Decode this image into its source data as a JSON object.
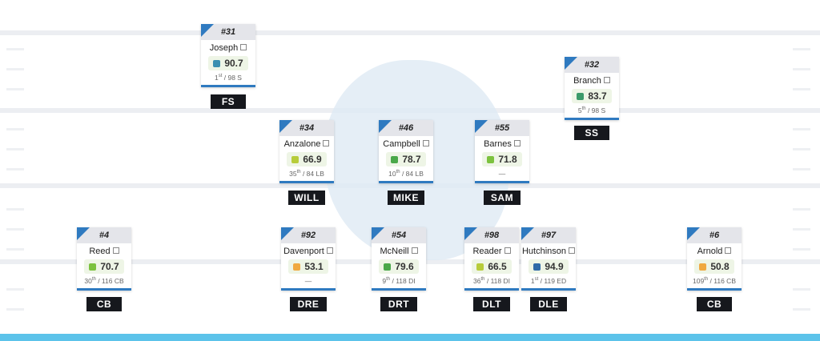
{
  "players": [
    {
      "number": "#31",
      "name": "Joseph",
      "grade": "90.7",
      "color": "#3a8fb0",
      "rank": "1",
      "suffix": "st",
      "of": " / 98 S",
      "position": "FS"
    },
    {
      "number": "#32",
      "name": "Branch",
      "grade": "83.7",
      "color": "#3b9a6a",
      "rank": "5",
      "suffix": "th",
      "of": " / 98 S",
      "position": "SS"
    },
    {
      "number": "#34",
      "name": "Anzalone",
      "grade": "66.9",
      "color": "#b7cc3a",
      "rank": "35",
      "suffix": "th",
      "of": " / 84 LB",
      "position": "WILL"
    },
    {
      "number": "#46",
      "name": "Campbell",
      "grade": "78.7",
      "color": "#4aa84a",
      "rank": "10",
      "suffix": "th",
      "of": " / 84 LB",
      "position": "MIKE"
    },
    {
      "number": "#55",
      "name": "Barnes",
      "grade": "71.8",
      "color": "#7cc23e",
      "rank": "—",
      "suffix": "",
      "of": "",
      "position": "SAM"
    },
    {
      "number": "#4",
      "name": "Reed",
      "grade": "70.7",
      "color": "#7cc23e",
      "rank": "30",
      "suffix": "th",
      "of": " / 116 CB",
      "position": "CB"
    },
    {
      "number": "#92",
      "name": "Davenport",
      "grade": "53.1",
      "color": "#f0a940",
      "rank": "—",
      "suffix": "",
      "of": "",
      "position": "DRE"
    },
    {
      "number": "#54",
      "name": "McNeill",
      "grade": "79.6",
      "color": "#4aa84a",
      "rank": "9",
      "suffix": "th",
      "of": " / 118 DI",
      "position": "DRT"
    },
    {
      "number": "#98",
      "name": "Reader",
      "grade": "66.5",
      "color": "#b7cc3a",
      "rank": "36",
      "suffix": "th",
      "of": " / 118 DI",
      "position": "DLT"
    },
    {
      "number": "#97",
      "name": "Hutchinson",
      "grade": "94.9",
      "color": "#2f6aa8",
      "rank": "1",
      "suffix": "st",
      "of": " / 119 ED",
      "position": "DLE"
    },
    {
      "number": "#6",
      "name": "Arnold",
      "grade": "50.8",
      "color": "#f0a940",
      "rank": "109",
      "suffix": "th",
      "of": " / 116 CB",
      "position": "CB"
    }
  ]
}
